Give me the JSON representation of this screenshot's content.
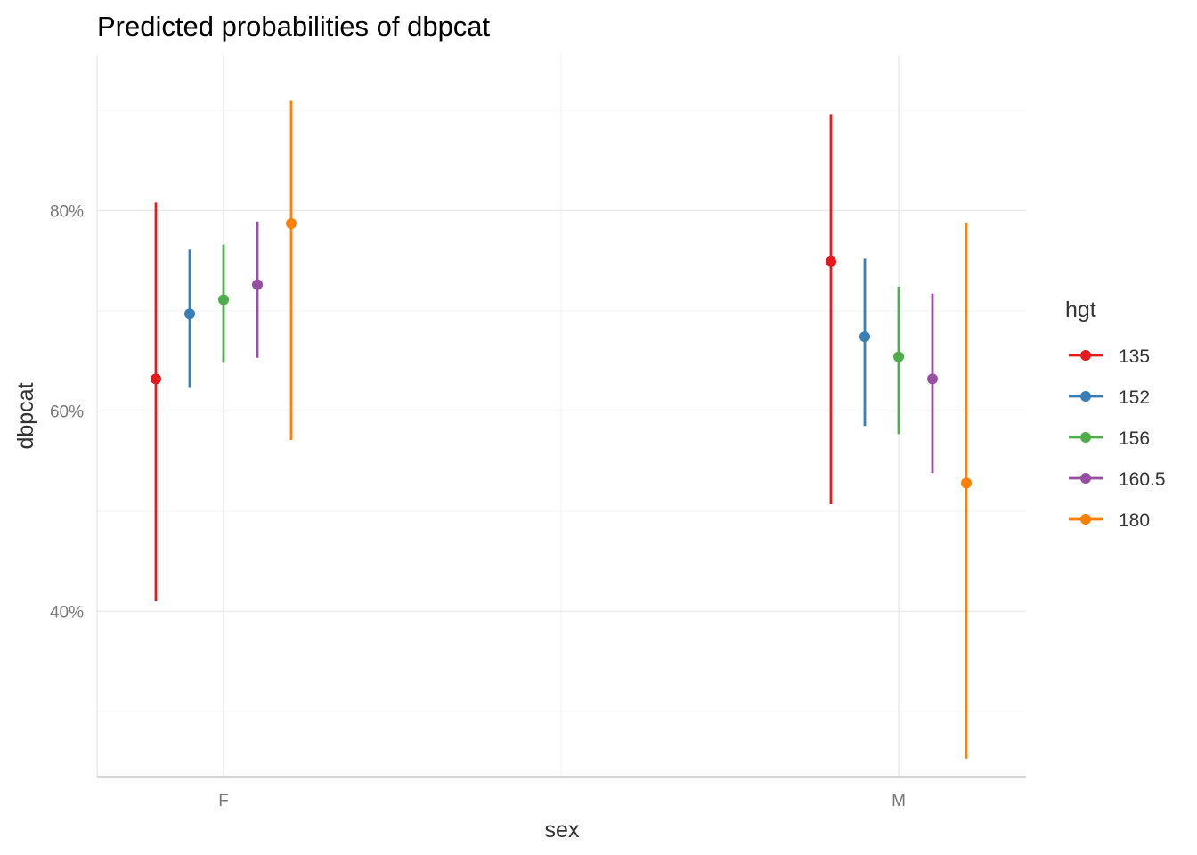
{
  "chart_data": {
    "type": "errorbar",
    "title": "Predicted probabilities of dbpcat",
    "xlabel": "sex",
    "ylabel": "dbpcat",
    "categories": [
      "F",
      "M"
    ],
    "ylim": [
      0.235,
      0.955
    ],
    "yticks": [
      0.4,
      0.6,
      0.8
    ],
    "ytick_labels": [
      "40%",
      "60%",
      "80%"
    ],
    "grid": true,
    "legend": {
      "title": "hgt",
      "position": "right"
    },
    "series": [
      {
        "name": "135",
        "color": "#e41a1c",
        "values": [
          {
            "x": "F",
            "estimate": 0.632,
            "lower": 0.41,
            "upper": 0.808
          },
          {
            "x": "M",
            "estimate": 0.749,
            "lower": 0.507,
            "upper": 0.896
          }
        ]
      },
      {
        "name": "152",
        "color": "#377eb8",
        "values": [
          {
            "x": "F",
            "estimate": 0.697,
            "lower": 0.623,
            "upper": 0.761
          },
          {
            "x": "M",
            "estimate": 0.674,
            "lower": 0.585,
            "upper": 0.752
          }
        ]
      },
      {
        "name": "156",
        "color": "#4daf4a",
        "values": [
          {
            "x": "F",
            "estimate": 0.711,
            "lower": 0.648,
            "upper": 0.766
          },
          {
            "x": "M",
            "estimate": 0.654,
            "lower": 0.577,
            "upper": 0.724
          }
        ]
      },
      {
        "name": "160.5",
        "color": "#984ea3",
        "values": [
          {
            "x": "F",
            "estimate": 0.726,
            "lower": 0.653,
            "upper": 0.789
          },
          {
            "x": "M",
            "estimate": 0.632,
            "lower": 0.538,
            "upper": 0.717
          }
        ]
      },
      {
        "name": "180",
        "color": "#ff7f00",
        "values": [
          {
            "x": "F",
            "estimate": 0.787,
            "lower": 0.571,
            "upper": 0.91
          },
          {
            "x": "M",
            "estimate": 0.528,
            "lower": 0.253,
            "upper": 0.788
          }
        ]
      }
    ]
  }
}
